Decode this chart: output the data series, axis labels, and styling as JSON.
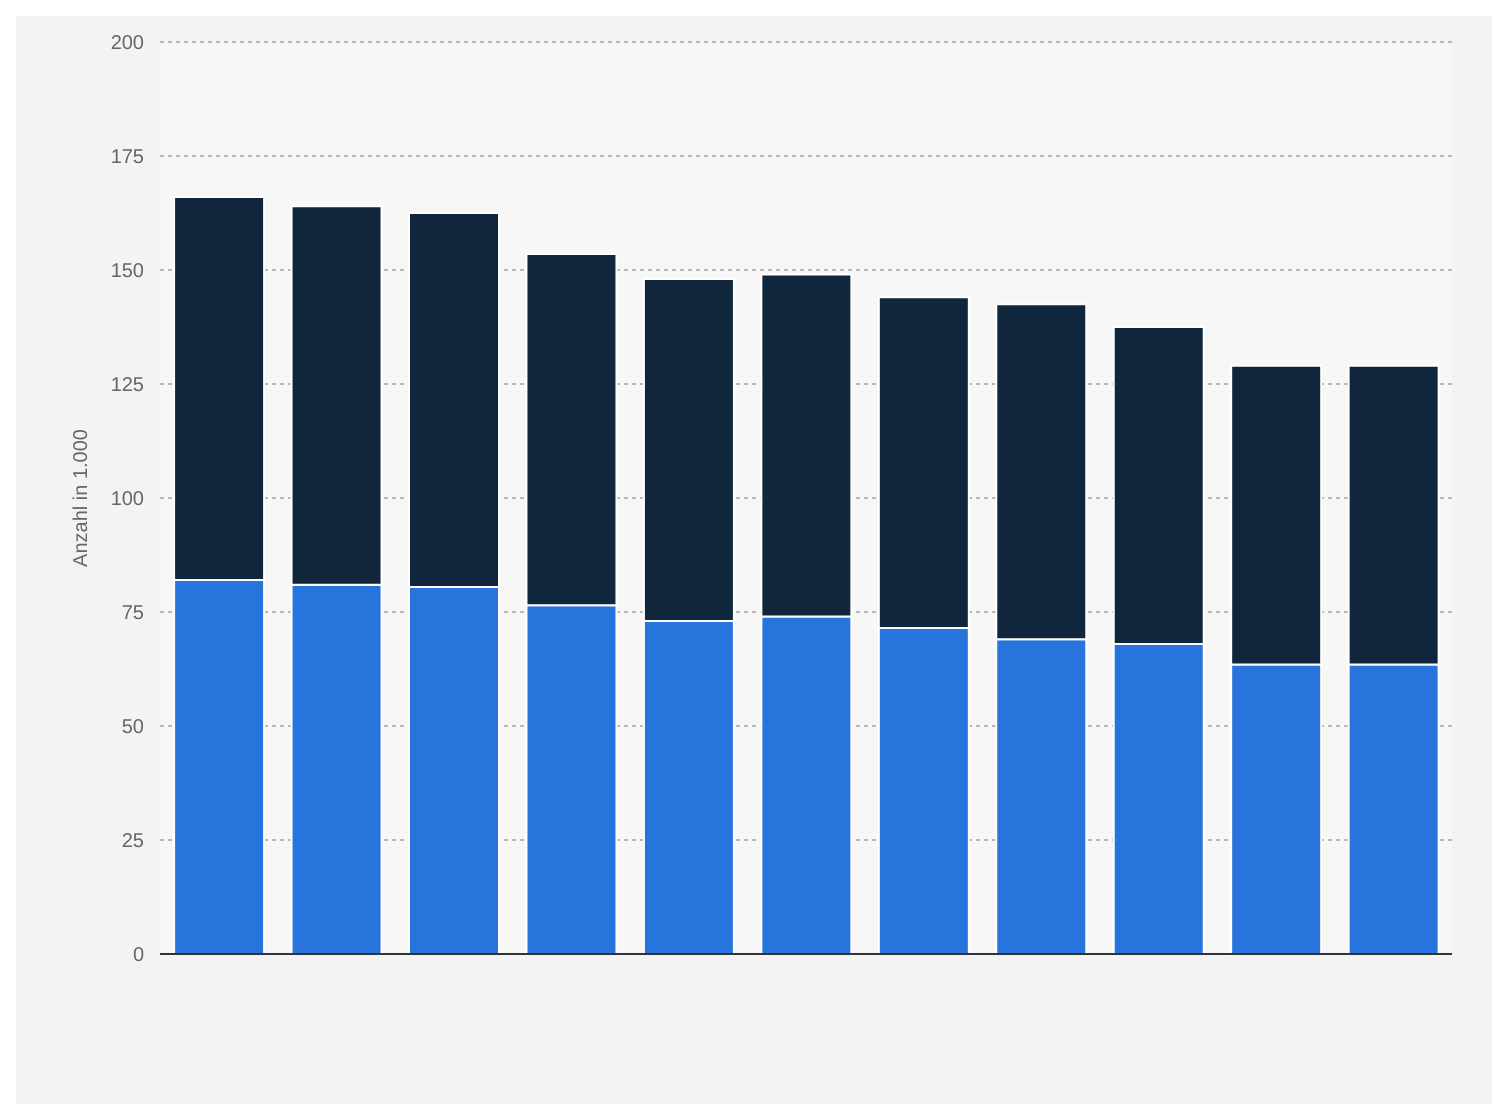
{
  "chart_data": {
    "type": "bar",
    "stacked": true,
    "ylabel": "Anzahl in 1.000",
    "categories": [
      null,
      null,
      null,
      null,
      null,
      null,
      null,
      null,
      null,
      null,
      null
    ],
    "series": [
      {
        "color": "#2775dc",
        "values": [
          82,
          81,
          80.5,
          76.5,
          73,
          74,
          71.5,
          69,
          68,
          63.5,
          63.5
        ]
      },
      {
        "color": "#0f263d",
        "values": [
          84,
          83,
          82,
          77,
          75,
          75,
          72.5,
          73.5,
          69.5,
          65.5,
          65.5
        ]
      }
    ],
    "ylim": [
      0,
      200
    ],
    "yticks": [
      0,
      25,
      50,
      75,
      100,
      125,
      150,
      175,
      200
    ],
    "grid": "y",
    "legend": false
  }
}
